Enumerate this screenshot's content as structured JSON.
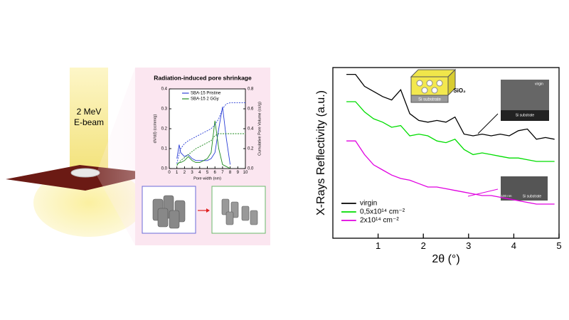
{
  "beam": {
    "energy": "2 MeV",
    "label": "E-beam"
  },
  "panel": {
    "title": "Radiation-induced pore shrinkage"
  },
  "chart_data": [
    {
      "type": "line",
      "x_label": "Pore width (nm)",
      "y_label": "dV/d(l) (cc/nm/g)",
      "y2_label": "Cumulative Pore Volume (cc/g)",
      "x": [
        1,
        1.3,
        1.5,
        2,
        2.5,
        3,
        3.5,
        4,
        4.5,
        5,
        5.5,
        6,
        6.5,
        7,
        7.5,
        8,
        9,
        10
      ],
      "xlim": [
        0,
        10
      ],
      "xticks": [
        0,
        1,
        2,
        3,
        4,
        5,
        6,
        7,
        8,
        9,
        10
      ],
      "ylim": [
        0,
        0.4
      ],
      "yticks": [
        {
          "value": 0,
          "label": "0.0"
        },
        0.1,
        0.2,
        0.3,
        0.4
      ],
      "y2lim": [
        0,
        0.8
      ],
      "y2ticks": [
        {
          "value": 0,
          "label": "0.0"
        },
        0.2,
        0.4,
        0.6,
        0.8
      ],
      "legend": "upper left",
      "series": [
        {
          "name": "SBA-15 Pristine",
          "color": "#2b3fd6",
          "values": [
            0.05,
            0.12,
            0.08,
            0.06,
            0.07,
            0.05,
            0.04,
            0.04,
            0.04,
            0.04,
            0.05,
            0.08,
            0.2,
            0.31,
            0.15,
            0.02,
            null,
            null
          ]
        },
        {
          "name": "SBA-15 2 GGy",
          "color": "#1e8a1e",
          "values": [
            0.02,
            0.03,
            0.03,
            0.04,
            0.06,
            0.04,
            0.03,
            0.03,
            0.04,
            0.05,
            0.08,
            0.24,
            0.1,
            0.02,
            0.01,
            0,
            null,
            null
          ]
        },
        {
          "color": "#2b3fd6",
          "dashed": true,
          "axis": "y2",
          "values": [
            0.05,
            0.15,
            0.2,
            0.25,
            0.28,
            0.3,
            0.32,
            0.34,
            0.36,
            0.38,
            0.4,
            0.44,
            0.5,
            0.6,
            0.65,
            0.66,
            0.66,
            0.66
          ]
        },
        {
          "color": "#1e8a1e",
          "dashed": true,
          "axis": "y2",
          "values": [
            0.03,
            0.06,
            0.08,
            0.11,
            0.14,
            0.17,
            0.2,
            0.22,
            0.24,
            0.26,
            0.28,
            0.33,
            0.35,
            0.35,
            0.35,
            0.35,
            0.35,
            0.35
          ]
        }
      ]
    },
    {
      "type": "line",
      "x_label": "2θ (°)",
      "y_label": "X-Rays Reflectivity (a.u.)",
      "x": [
        0.3,
        0.5,
        0.7,
        0.9,
        1.1,
        1.3,
        1.5,
        1.7,
        1.9,
        2.1,
        2.3,
        2.5,
        2.7,
        2.9,
        3.1,
        3.3,
        3.5,
        3.7,
        3.9,
        4.1,
        4.3,
        4.5,
        4.7,
        4.9
      ],
      "xlim": [
        0,
        5
      ],
      "xticks": [
        1,
        2,
        3,
        4,
        5
      ],
      "ylim": [
        0,
        10
      ],
      "legend": "lower left",
      "annotations": [
        "SiO₂",
        "Si substrate",
        "virgin",
        "Si substrate",
        "100 nm",
        "Si substrate"
      ],
      "series": [
        {
          "name": "virgin",
          "color": "#000000",
          "values": [
            9.6,
            9.6,
            8.9,
            8.6,
            8.3,
            8.1,
            8.7,
            7.3,
            6.9,
            6.8,
            6.9,
            6.8,
            7.1,
            6.1,
            6.0,
            6.1,
            6.0,
            6.1,
            6.0,
            6.3,
            6.4,
            5.8,
            5.9,
            5.8
          ]
        },
        {
          "name": "0,5x10¹⁴ cm⁻²",
          "color": "#00dd00",
          "values": [
            8.0,
            8.0,
            7.4,
            7.0,
            6.8,
            6.5,
            6.6,
            6.0,
            6.1,
            6.0,
            5.7,
            5.6,
            5.8,
            5.2,
            4.9,
            5.0,
            4.9,
            4.8,
            4.7,
            4.7,
            4.6,
            4.5,
            4.5,
            4.5
          ]
        },
        {
          "name": "2x10¹⁴ cm⁻²",
          "color": "#e000e0",
          "values": [
            5.7,
            5.7,
            4.9,
            4.3,
            4.0,
            3.7,
            3.5,
            3.4,
            3.2,
            3.0,
            3.0,
            2.9,
            2.8,
            2.7,
            2.6,
            2.5,
            2.5,
            2.4,
            2.3,
            2.2,
            2.1,
            2.0,
            2.0,
            2.0
          ]
        }
      ]
    }
  ]
}
